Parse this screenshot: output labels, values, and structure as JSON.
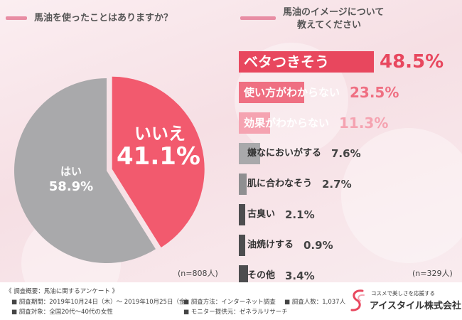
{
  "questions": {
    "q1": "馬油を使ったことはありますか？",
    "q2_line1": "馬油のイメージについて",
    "q2_line2": "教えてください"
  },
  "chart_data": [
    {
      "type": "pie",
      "title": "馬油を使ったことはありますか？",
      "slices": [
        {
          "label": "いいえ",
          "value": 41.1,
          "display": "41.1%",
          "color": "#f25a6e"
        },
        {
          "label": "はい",
          "value": 58.9,
          "display": "58.9%",
          "color": "#a9a9ab"
        }
      ],
      "n_label": "(n=808人)"
    },
    {
      "type": "bar",
      "title": "馬油のイメージについて教えてください",
      "categories": [
        "ベタつきそう",
        "使い方がわからない",
        "効果がわからない",
        "嫌なにおいがする",
        "肌に合わなそう",
        "古臭い",
        "油焼けする",
        "その他"
      ],
      "values": [
        48.5,
        23.5,
        11.3,
        7.6,
        2.7,
        2.1,
        0.9,
        3.4
      ],
      "value_labels": [
        "48.5%",
        "23.5%",
        "11.3%",
        "7.6%",
        "2.7%",
        "2.1%",
        "0.9%",
        "3.4%"
      ],
      "colors": [
        "#e8475e",
        "#ef6f82",
        "#f5a3b1",
        "#a9a9ab",
        "#8f8f91",
        "#4d4d4f",
        "#4d4d4f",
        "#4d4d4f"
      ],
      "n_label": "(n=329人)"
    }
  ],
  "footer": {
    "heading": "《 調査概要：馬油に関するアンケート 》",
    "period": "■ 調査期間：2019年10月24日（木）～ 2019年10月25日（金）",
    "target": "■ 調査対象：全国20代～40代の女性",
    "method": "■ 調査方法：インターネット調査",
    "provider": "■ モニター提供元：ゼネラルリサーチ",
    "count": "■ 調査人数：1,037人"
  },
  "logo": {
    "tagline": "コスメで美しさを応援する",
    "company": "アイスタイル株式会社",
    "color": "#e8475e"
  }
}
